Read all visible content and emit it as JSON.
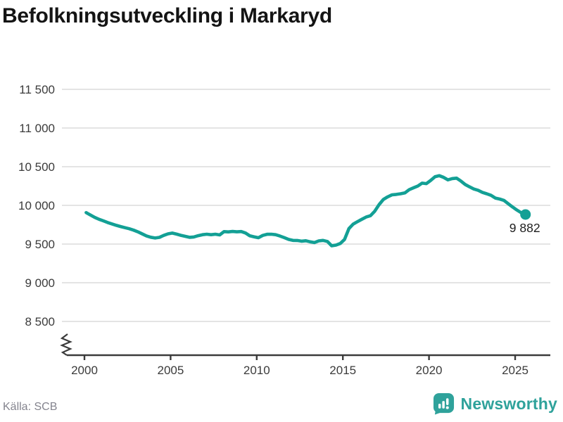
{
  "title": "Befolkningsutveckling i Markaryd",
  "footer": {
    "source": "Källa: SCB",
    "brand": "Newsworthy"
  },
  "colors": {
    "line": "#13A095",
    "grid": "#e4e4e4",
    "axis": "#3b3b3b",
    "tick_text": "#3b3b3b",
    "end_label_text": "#1d1d1d",
    "logo": "#2fa29b"
  },
  "chart_data": {
    "type": "line",
    "title": "Befolkningsutveckling i Markaryd",
    "series_name": "Befolkning i Markaryd",
    "source": "Källa: SCB",
    "x_start": 2000.1,
    "x_end": 2025.6,
    "x_ticks": [
      2000,
      2005,
      2010,
      2015,
      2020,
      2025
    ],
    "x_tick_labels": [
      "2000",
      "2005",
      "2010",
      "2015",
      "2020",
      "2025"
    ],
    "y_ticks": [
      8500,
      9000,
      9500,
      10000,
      10500,
      11000,
      11500
    ],
    "y_tick_labels": [
      "8 500",
      "9 000",
      "9 500",
      "10 000",
      "10 500",
      "11 000",
      "11 500"
    ],
    "ylim": [
      8500,
      11500
    ],
    "axis_break": true,
    "grid": true,
    "legend": "none",
    "end_label": "9 882",
    "end_value": 9882,
    "values": [
      9906,
      9875,
      9845,
      9820,
      9800,
      9778,
      9760,
      9742,
      9726,
      9712,
      9698,
      9680,
      9658,
      9632,
      9605,
      9588,
      9578,
      9586,
      9612,
      9632,
      9642,
      9628,
      9613,
      9600,
      9587,
      9592,
      9608,
      9621,
      9627,
      9621,
      9627,
      9618,
      9661,
      9657,
      9663,
      9658,
      9662,
      9643,
      9606,
      9594,
      9582,
      9612,
      9626,
      9627,
      9621,
      9604,
      9583,
      9560,
      9547,
      9546,
      9537,
      9543,
      9529,
      9519,
      9541,
      9547,
      9534,
      9477,
      9486,
      9507,
      9560,
      9700,
      9758,
      9790,
      9820,
      9849,
      9866,
      9925,
      10009,
      10076,
      10110,
      10136,
      10142,
      10150,
      10161,
      10203,
      10227,
      10250,
      10287,
      10281,
      10323,
      10371,
      10384,
      10362,
      10330,
      10346,
      10352,
      10315,
      10270,
      10240,
      10212,
      10195,
      10167,
      10150,
      10130,
      10095,
      10082,
      10065,
      10021,
      9979,
      9940,
      9905,
      9882
    ]
  }
}
